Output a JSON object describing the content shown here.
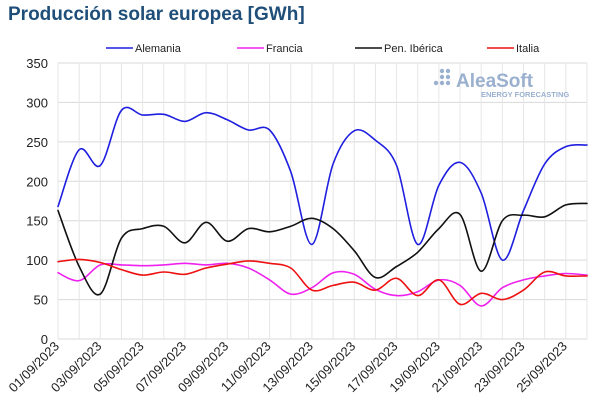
{
  "page": {
    "title": "Producción solar europea [GWh]"
  },
  "logo": {
    "name": "AleaSoft",
    "tagline": "ENERGY FORECASTING"
  },
  "chart_data": {
    "type": "line",
    "title": "Producción solar europea [GWh]",
    "xlabel": "",
    "ylabel": "",
    "ylim": [
      0,
      350
    ],
    "yticks": [
      0,
      50,
      100,
      150,
      200,
      250,
      300,
      350
    ],
    "grid": true,
    "legend_position": "top",
    "x": [
      "01/09/2023",
      "02/09/2023",
      "03/09/2023",
      "04/09/2023",
      "05/09/2023",
      "06/09/2023",
      "07/09/2023",
      "08/09/2023",
      "09/09/2023",
      "10/09/2023",
      "11/09/2023",
      "12/09/2023",
      "13/09/2023",
      "14/09/2023",
      "15/09/2023",
      "16/09/2023",
      "17/09/2023",
      "18/09/2023",
      "19/09/2023",
      "20/09/2023",
      "21/09/2023",
      "22/09/2023",
      "23/09/2023",
      "24/09/2023",
      "25/09/2023",
      "26/09/2023"
    ],
    "xtick_labels": [
      "01/09/2023",
      "03/09/2023",
      "05/09/2023",
      "07/09/2023",
      "09/09/2023",
      "11/09/2023",
      "13/09/2023",
      "15/09/2023",
      "17/09/2023",
      "19/09/2023",
      "21/09/2023",
      "23/09/2023",
      "25/09/2023"
    ],
    "series": [
      {
        "name": "Alemania",
        "color": "#1f1fe0",
        "values": [
          168,
          240,
          220,
          290,
          284,
          285,
          276,
          287,
          278,
          265,
          265,
          212,
          120,
          222,
          264,
          252,
          220,
          120,
          195,
          224,
          185,
          100,
          163,
          222,
          244,
          246
        ]
      },
      {
        "name": "Francia",
        "color": "#ee22ee",
        "values": [
          84,
          74,
          94,
          94,
          93,
          94,
          96,
          94,
          96,
          90,
          75,
          57,
          65,
          84,
          82,
          63,
          55,
          60,
          75,
          68,
          42,
          65,
          75,
          80,
          83,
          81
        ]
      },
      {
        "name": "Pen. Ibérica",
        "color": "#111111",
        "values": [
          163,
          92,
          57,
          128,
          140,
          143,
          122,
          148,
          124,
          140,
          136,
          143,
          153,
          140,
          112,
          78,
          92,
          110,
          140,
          158,
          86,
          150,
          157,
          155,
          170,
          172
        ]
      },
      {
        "name": "Italia",
        "color": "#ee1111",
        "values": [
          98,
          101,
          97,
          88,
          81,
          85,
          82,
          90,
          95,
          99,
          96,
          90,
          62,
          68,
          72,
          62,
          77,
          55,
          75,
          44,
          58,
          50,
          62,
          85,
          80,
          80
        ]
      }
    ]
  }
}
